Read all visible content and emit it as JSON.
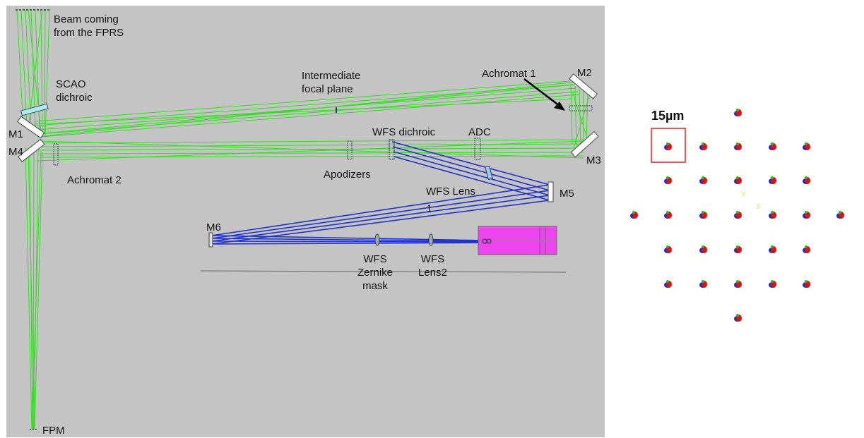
{
  "layout": {
    "labels": {
      "beam": "Beam coming\nfrom the FPRS",
      "scao": "SCAO\ndichroic",
      "ifp": "Intermediate\nfocal plane",
      "achromat1": "Achromat 1",
      "m2": "M2",
      "m1": "M1",
      "m4": "M4",
      "m3": "M3",
      "wfs_dichroic": "WFS dichroic",
      "adc": "ADC",
      "achromat2": "Achromat 2",
      "apodizers": "Apodizers",
      "wfs_lens": "WFS Lens",
      "wfs_lens_num": "1",
      "m5": "M5",
      "m6": "M6",
      "zernike": "WFS\nZernike\nmask",
      "lens2": "WFS\nLens2",
      "fpm": "FPM"
    },
    "colors": {
      "beam_green": "#33dd22",
      "beam_blue": "#2233cc",
      "detector": "#ee44ee",
      "panel": "#c4c4c4"
    }
  },
  "spot_diagram": {
    "scale_label": "15µm",
    "colors": {
      "grid": "#ffffff",
      "spot_red": "#e01010",
      "spot_blue": "#1a2ad0",
      "spot_green": "#1fbf1f",
      "box": "#e02020",
      "axes": "#e8e850"
    },
    "axis_labels": {
      "x": "X",
      "y": "Y"
    }
  }
}
